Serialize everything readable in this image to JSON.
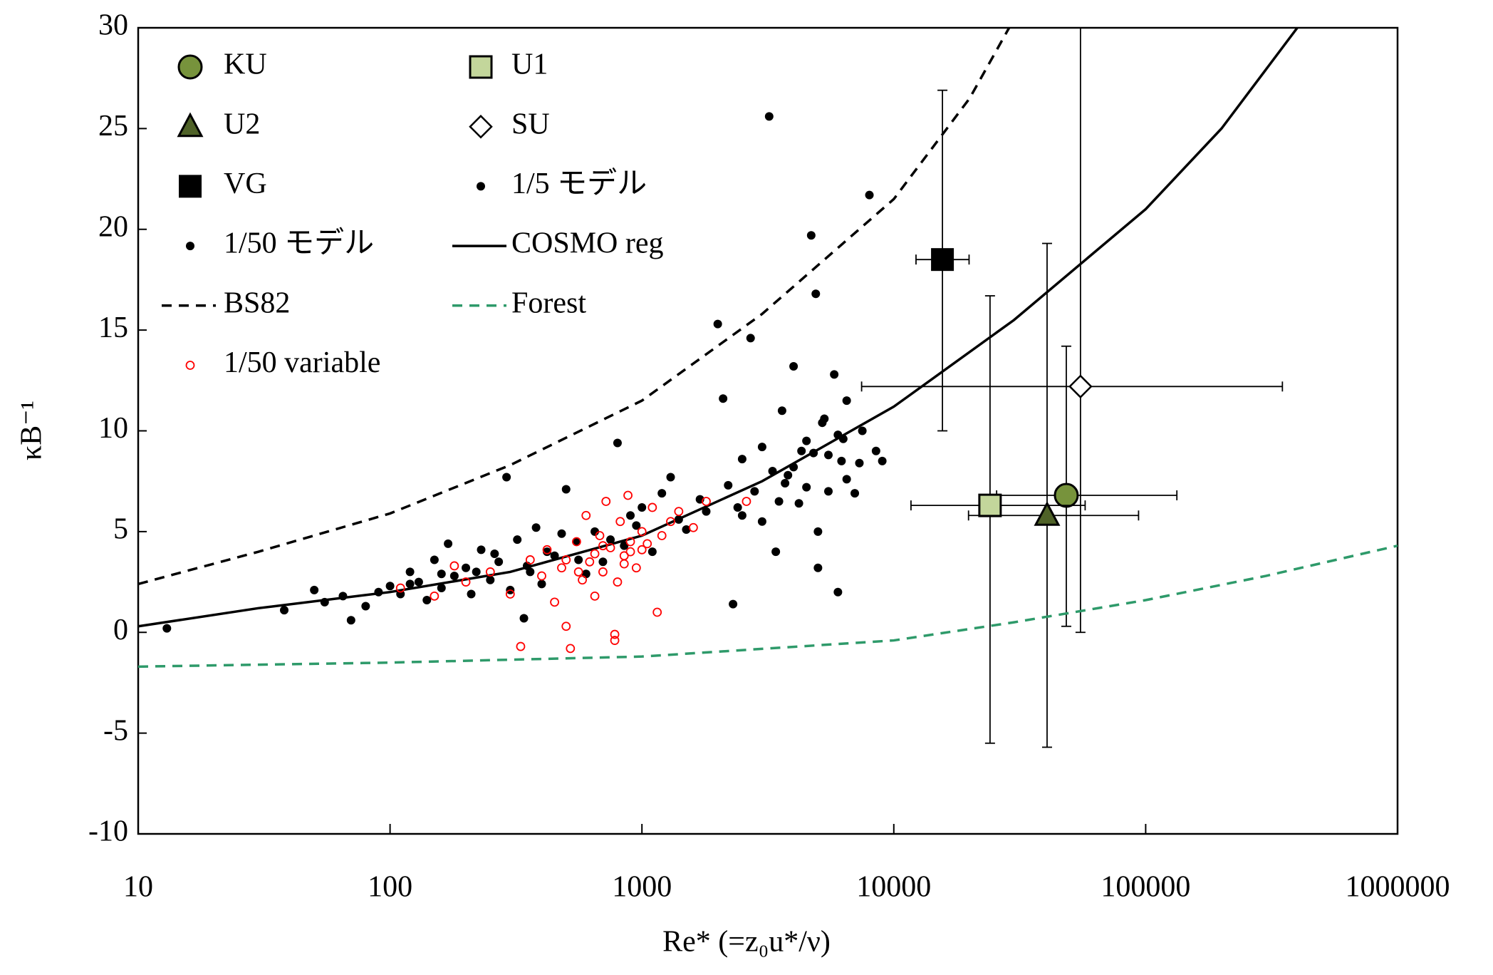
{
  "chart_data": {
    "type": "scatter",
    "xlabel": "Re* (=z₀u*/ν)",
    "ylabel": "κB⁻¹",
    "xlog": true,
    "xlim": [
      10,
      1000000
    ],
    "xticks": [
      10,
      100,
      1000,
      10000,
      100000,
      1000000
    ],
    "ylim": [
      -10,
      30
    ],
    "yticks": [
      -10,
      -5,
      0,
      5,
      10,
      15,
      20,
      25,
      30
    ],
    "series": [
      {
        "name": "KU",
        "marker": "circle",
        "color": "#77933c",
        "x": [
          48400
        ],
        "values": [
          6.8
        ],
        "xlow": [
          25600
        ],
        "xhigh": [
          133000
        ],
        "ylow": [
          0.3
        ],
        "yhigh": [
          14.2
        ]
      },
      {
        "name": "U1",
        "marker": "square",
        "color": "#c3d69b",
        "x": [
          24100
        ],
        "values": [
          6.3
        ],
        "xlow": [
          11700
        ],
        "xhigh": [
          57500
        ],
        "ylow": [
          -5.5
        ],
        "yhigh": [
          16.7
        ]
      },
      {
        "name": "U2",
        "marker": "triangle",
        "color": "#4f6228",
        "x": [
          40600
        ],
        "values": [
          5.8
        ],
        "xlow": [
          19800
        ],
        "xhigh": [
          93700
        ],
        "ylow": [
          -5.7
        ],
        "yhigh": [
          19.3
        ]
      },
      {
        "name": "SU",
        "marker": "diamond",
        "color": "#ffffff",
        "x": [
          55100
        ],
        "values": [
          12.2
        ],
        "xlow": [
          7450
        ],
        "xhigh": [
          349000
        ],
        "ylow": [
          0
        ],
        "yhigh": [
          30
        ]
      },
      {
        "name": "VG",
        "marker": "bigsquare",
        "color": "#000000",
        "x": [
          15600
        ],
        "values": [
          18.5
        ],
        "xlow": [
          12250
        ],
        "xhigh": [
          19900
        ],
        "ylow": [
          10
        ],
        "yhigh": [
          26.9
        ]
      },
      {
        "name": "1/5 モデル",
        "marker": "dot",
        "color": "#000000",
        "x": [
          2000,
          2100,
          2200,
          2300,
          2500,
          2700,
          3000,
          3200,
          3400,
          3600,
          3800,
          4000,
          4200,
          4500,
          4700,
          4900,
          5000,
          5200,
          5500,
          5800,
          6000,
          6200,
          6500,
          7000,
          7500,
          8000,
          8500,
          9000,
          3000,
          4000,
          5000,
          6000,
          2500,
          3500,
          4500,
          5500,
          6500,
          2800,
          3300,
          4300,
          5300,
          6300,
          7300,
          2400,
          3700,
          4800
        ],
        "values": [
          15.3,
          11.6,
          7.3,
          1.4,
          8.6,
          14.6,
          9.2,
          25.6,
          4.0,
          11.0,
          7.8,
          13.2,
          6.4,
          9.5,
          19.7,
          16.8,
          3.2,
          10.4,
          7.0,
          12.8,
          2.0,
          8.5,
          11.5,
          6.9,
          10.0,
          21.7,
          9.0,
          8.5,
          5.5,
          8.2,
          5.0,
          9.8,
          5.8,
          6.5,
          7.2,
          8.8,
          7.6,
          7.0,
          8.0,
          9.0,
          10.6,
          9.6,
          8.4,
          6.2,
          7.4,
          8.9
        ]
      },
      {
        "name": "1/50 モデル",
        "marker": "dot",
        "color": "#000000",
        "x": [
          13,
          38,
          50,
          55,
          65,
          70,
          80,
          90,
          100,
          110,
          120,
          130,
          140,
          150,
          160,
          170,
          180,
          200,
          210,
          230,
          250,
          270,
          290,
          300,
          320,
          340,
          360,
          380,
          400,
          450,
          500,
          550,
          600,
          650,
          700,
          800,
          850,
          900,
          1000,
          1100,
          1200,
          1300,
          1500,
          1800,
          120,
          160,
          220,
          260,
          350,
          420,
          480,
          560,
          750,
          950,
          1400,
          1700
        ],
        "values": [
          0.2,
          1.1,
          2.1,
          1.5,
          1.8,
          0.6,
          1.3,
          2.0,
          2.3,
          1.9,
          3.0,
          2.5,
          1.6,
          3.6,
          2.2,
          4.4,
          2.8,
          3.2,
          1.9,
          4.1,
          2.6,
          3.5,
          7.7,
          2.1,
          4.6,
          0.7,
          3.0,
          5.2,
          2.4,
          3.8,
          7.1,
          4.5,
          2.9,
          5.0,
          3.5,
          9.4,
          4.3,
          5.8,
          6.2,
          4.0,
          6.9,
          7.7,
          5.1,
          6.0,
          2.4,
          2.9,
          3.0,
          3.9,
          3.3,
          4.0,
          4.9,
          3.6,
          4.6,
          5.3,
          5.6,
          6.6
        ]
      },
      {
        "name": "COSMO reg",
        "marker": "line",
        "dash": "solid",
        "color": "#000000",
        "x": [
          10,
          30,
          100,
          300,
          1000,
          3000,
          10000,
          30000,
          100000,
          200000,
          400000
        ],
        "values": [
          0.3,
          1.2,
          2.0,
          3.0,
          4.8,
          7.5,
          11.2,
          15.5,
          21,
          25,
          30
        ]
      },
      {
        "name": "BS82",
        "marker": "line",
        "dash": "dashed",
        "color": "#000000",
        "x": [
          10,
          30,
          100,
          300,
          1000,
          3000,
          10000,
          20000,
          28700
        ],
        "values": [
          2.4,
          4.0,
          5.9,
          8.3,
          11.5,
          15.8,
          21.5,
          26.5,
          30
        ]
      },
      {
        "name": "Forest",
        "marker": "line",
        "dash": "dashed",
        "color": "#2e9a6a",
        "x": [
          10,
          100,
          1000,
          10000,
          30000,
          100000,
          300000,
          1000000
        ],
        "values": [
          -1.7,
          -1.5,
          -1.2,
          -0.4,
          0.5,
          1.6,
          2.8,
          4.3
        ]
      },
      {
        "name": "1/50 variable",
        "marker": "ring",
        "color": "#ff0000",
        "x": [
          110,
          150,
          180,
          200,
          250,
          300,
          330,
          360,
          400,
          420,
          450,
          480,
          500,
          520,
          550,
          580,
          600,
          620,
          650,
          680,
          700,
          720,
          750,
          780,
          800,
          820,
          850,
          880,
          900,
          950,
          1000,
          1050,
          1100,
          1150,
          1200,
          1300,
          1400,
          1600,
          1800,
          2600,
          780,
          500,
          650,
          900,
          560,
          700,
          850,
          1000
        ],
        "values": [
          2.2,
          1.8,
          3.3,
          2.5,
          3.0,
          1.9,
          -0.7,
          3.6,
          2.8,
          4.1,
          1.5,
          3.2,
          0.3,
          -0.8,
          4.5,
          2.6,
          5.8,
          3.5,
          1.8,
          4.8,
          3.0,
          6.5,
          4.2,
          -0.4,
          2.5,
          5.5,
          3.8,
          6.8,
          4.5,
          3.2,
          5.0,
          4.4,
          6.2,
          1.0,
          4.8,
          5.5,
          6.0,
          5.2,
          6.5,
          6.5,
          -0.1,
          3.6,
          3.9,
          4.0,
          3.0,
          4.3,
          3.4,
          4.1
        ]
      }
    ]
  }
}
